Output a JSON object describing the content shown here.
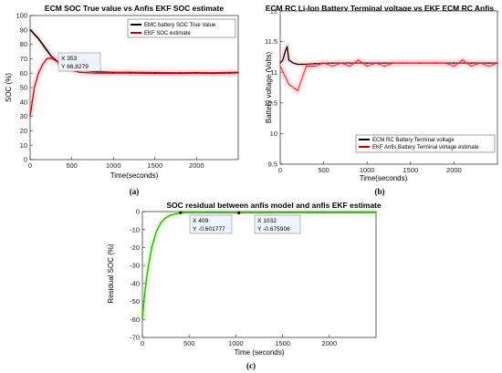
{
  "colors": {
    "true_value": "#000000",
    "estimate": "#c00000",
    "ekf_voltage": "#ff1010",
    "residual": "#22bb00",
    "glow_red": "#ff9aaa",
    "glow_green": "#aef08a",
    "datatip_bg": "#eef4fb",
    "datatip_value": "#1f5fbf"
  },
  "chart_data": [
    {
      "type": "line",
      "title": "ECM SOC True value vs Anfis EKF SOC estimate",
      "xlabel": "Time(seconds)",
      "ylabel": "SOC (%)",
      "caption": "(a)",
      "xlim": [
        0,
        2500
      ],
      "ylim": [
        0,
        100
      ],
      "xticks": [
        0,
        500,
        1000,
        1500,
        2000
      ],
      "yticks": [
        0,
        10,
        20,
        30,
        40,
        50,
        60,
        70,
        80,
        90,
        100
      ],
      "grid": false,
      "legend_position": "top-right",
      "series": [
        {
          "name": "EMC battery SOC True Value",
          "x": [
            0,
            20,
            50,
            100,
            150,
            200,
            250,
            300,
            353,
            400,
            500,
            600,
            800,
            1000,
            1200,
            1500,
            1800,
            2000,
            2200,
            2400,
            2500
          ],
          "y": [
            90,
            89,
            87,
            84,
            80,
            76,
            72,
            69.5,
            66.8,
            65,
            63,
            62,
            61,
            60.5,
            60.5,
            60.3,
            60.2,
            60.3,
            60.2,
            60.4,
            60.5
          ]
        },
        {
          "name": "EKF SOC estimate",
          "x": [
            0,
            20,
            50,
            100,
            150,
            200,
            250,
            300,
            353,
            400,
            500,
            600,
            800,
            1000,
            1200,
            1500,
            1800,
            2000,
            2200,
            2400,
            2500
          ],
          "y": [
            30,
            38,
            50,
            60,
            66,
            70,
            70.5,
            69,
            67,
            65,
            62,
            60.5,
            60,
            60,
            60,
            59.8,
            59.8,
            60,
            59.8,
            60,
            60.2
          ]
        }
      ],
      "datatip": {
        "x_label": "X 353",
        "y_label": "Y 66.8279",
        "x": 353,
        "y": 66.8279
      }
    },
    {
      "type": "line",
      "title": "ECM RC Li-Ion Battery  Terminal voltage vs EKF ECM RC Anfis",
      "xlabel": "Time(seconds)",
      "ylabel": "Battery voltage (Volts)",
      "caption": "(b)",
      "xlim": [
        0,
        2500
      ],
      "ylim": [
        9.5,
        12
      ],
      "xticks": [
        0,
        500,
        1000,
        1500,
        2000
      ],
      "yticks": [
        9.5,
        10,
        10.5,
        11,
        11.5,
        12
      ],
      "grid": false,
      "legend_position": "bottom-right",
      "series": [
        {
          "name": "ECM RC Battery Terminal voltage",
          "x": [
            0,
            30,
            60,
            80,
            100,
            150,
            200,
            300,
            400,
            600,
            800,
            1000,
            1200,
            1400,
            1600,
            1800,
            2000,
            2200,
            2400,
            2500
          ],
          "y": [
            11.15,
            11.2,
            11.35,
            11.42,
            11.2,
            11.15,
            11.13,
            11.13,
            11.14,
            11.15,
            11.15,
            11.15,
            11.15,
            11.15,
            11.15,
            11.15,
            11.15,
            11.15,
            11.15,
            11.15
          ]
        },
        {
          "name": "EKF Anfis Battery Terminal voltage estimate",
          "x": [
            0,
            100,
            200,
            300,
            400,
            500,
            600,
            700,
            800,
            900,
            1000,
            1100,
            1200,
            1300,
            1400,
            1500,
            1600,
            1700,
            1800,
            1900,
            2000,
            2100,
            2200,
            2300,
            2400,
            2500
          ],
          "y": [
            11.1,
            10.8,
            10.7,
            11.1,
            11.1,
            11.15,
            11.1,
            11.15,
            11.1,
            11.2,
            11.1,
            11.15,
            11.1,
            11.15,
            11.15,
            11.15,
            11.15,
            11.15,
            11.15,
            11.15,
            11.1,
            11.2,
            11.1,
            11.15,
            11.1,
            11.15
          ]
        }
      ]
    },
    {
      "type": "line",
      "title": "SOC residual between anfis model and anfis EKF estimate",
      "xlabel": "Time (seconds)",
      "ylabel": "Residual SOC (%)",
      "caption": "(c)",
      "xlim": [
        0,
        2500
      ],
      "ylim": [
        -70,
        0
      ],
      "xticks": [
        0,
        500,
        1000,
        1500,
        2000
      ],
      "yticks": [
        -70,
        -60,
        -50,
        -40,
        -30,
        -20,
        -10,
        0
      ],
      "grid": false,
      "series": [
        {
          "x": [
            0,
            20,
            50,
            100,
            150,
            200,
            250,
            300,
            409,
            600,
            800,
            1032,
            1500,
            2000,
            2500
          ],
          "y": [
            -60,
            -48,
            -35,
            -20,
            -11,
            -6,
            -3.5,
            -2,
            -0.6,
            -0.55,
            -0.6,
            -0.68,
            -0.6,
            -0.6,
            -0.55
          ]
        }
      ],
      "datatips": [
        {
          "x_label": "X 409",
          "y_label": "Y -0.601777",
          "x": 409,
          "y": -0.601777
        },
        {
          "x_label": "X 1032",
          "y_label": "Y -0.675906",
          "x": 1032,
          "y": -0.675906
        }
      ]
    }
  ]
}
